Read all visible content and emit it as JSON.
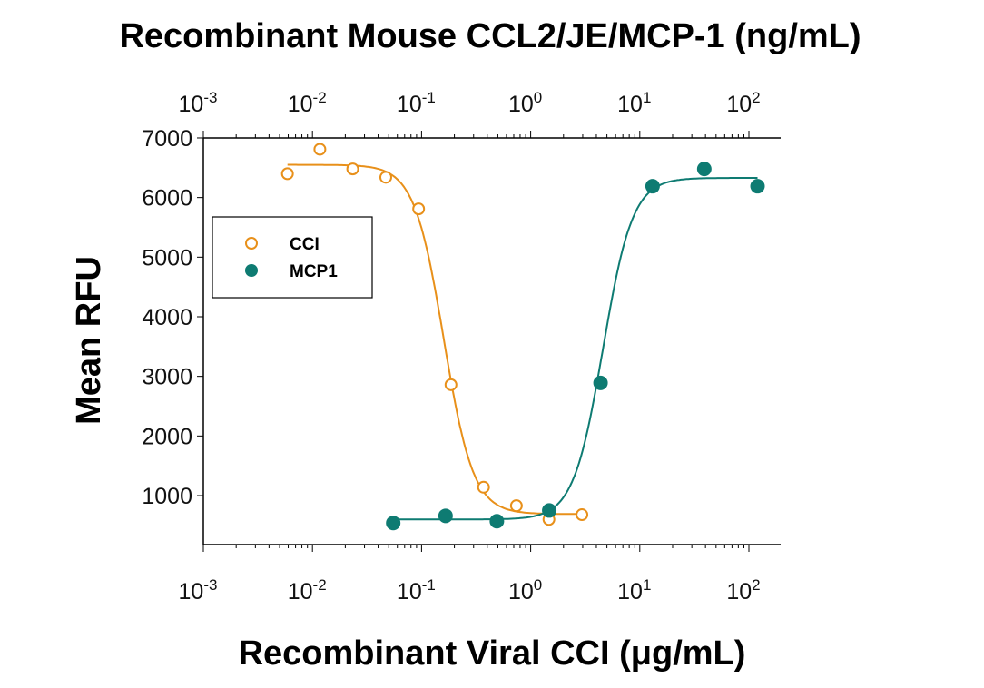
{
  "chart_data": {
    "type": "scatter",
    "title": "Recombinant Mouse CCL2/JE/MCP-1 (ng/mL)",
    "xlabel": "Recombinant Viral CCI (μg/mL)",
    "ylabel": "Mean RFU",
    "x_scale": "log",
    "xlim": [
      0.001,
      200
    ],
    "ylim": [
      180,
      7000
    ],
    "x_ticks": [
      0.001,
      0.01,
      0.1,
      1,
      10,
      100
    ],
    "x_tick_labels": [
      [
        "10",
        "-3"
      ],
      [
        "10",
        "-2"
      ],
      [
        "10",
        "-1"
      ],
      [
        "10",
        "0"
      ],
      [
        "10",
        "1"
      ],
      [
        "10",
        "2"
      ]
    ],
    "y_ticks": [
      1000,
      2000,
      3000,
      4000,
      5000,
      6000,
      7000
    ],
    "y_tick_labels": [
      "1000",
      "2000",
      "3000",
      "4000",
      "5000",
      "6000",
      "7000"
    ],
    "top_axis": "same log scale as bottom axis",
    "grid": false,
    "legend_position": "left-middle",
    "series": [
      {
        "name": "CCI",
        "marker": "open-circle",
        "color": "#E8901A",
        "x": [
          0.0059,
          0.0117,
          0.0234,
          0.047,
          0.094,
          0.186,
          0.37,
          0.74,
          1.47,
          2.95
        ],
        "y": [
          6400,
          6810,
          6480,
          6340,
          5810,
          2860,
          1140,
          830,
          600,
          680
        ],
        "fit": {
          "model": "4PL",
          "bottom": 690,
          "top": 6550,
          "ec50": 0.16,
          "hill": -3.2
        }
      },
      {
        "name": "MCP1",
        "marker": "filled-circle",
        "color": "#0E7B72",
        "x": [
          0.055,
          0.166,
          0.49,
          1.48,
          4.37,
          13.1,
          39,
          120
        ],
        "y": [
          540,
          660,
          570,
          750,
          2890,
          6190,
          6480,
          6190
        ],
        "fit": {
          "model": "4PL",
          "bottom": 600,
          "top": 6330,
          "ec50": 4.6,
          "hill": 3.2
        }
      }
    ]
  }
}
